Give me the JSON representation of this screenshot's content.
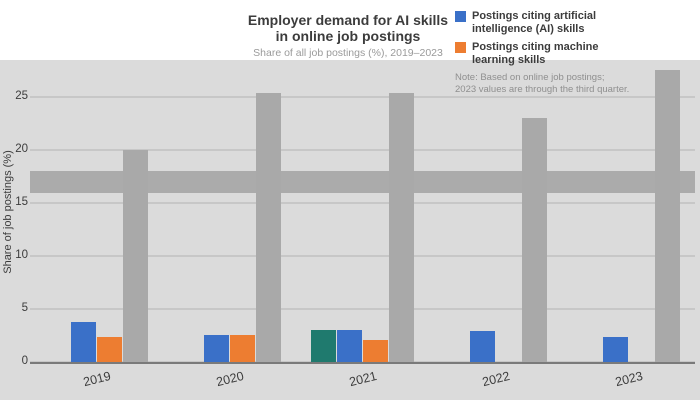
{
  "header": {
    "title_line1": "Employer demand for AI skills",
    "title_line2": "in online job postings",
    "subtitle": "Share of all job postings (%), 2019–2023"
  },
  "legend": {
    "entries": [
      {
        "label_line1": "Postings citing artificial",
        "label_line2": "intelligence (AI) skills",
        "color": "#3a70c8"
      },
      {
        "label_line1": "Postings citing machine",
        "label_line2": "learning skills",
        "color": "#ed7d31"
      }
    ],
    "note_line1": "Note: Based on online job postings;",
    "note_line2": "2023 values are through the third quarter."
  },
  "y_axis": {
    "title": "Share of job postings (%)",
    "ticks": [
      "0",
      "5",
      "10",
      "15",
      "20",
      "25"
    ]
  },
  "x_axis": {
    "labels": [
      "2019",
      "2020",
      "2021",
      "2022",
      "2023"
    ]
  },
  "chart_data": {
    "type": "bar",
    "title": "Employer demand for AI skills in online job postings",
    "xlabel": "",
    "ylabel": "Share of job postings (%)",
    "categories": [
      "2019",
      "2020",
      "2021",
      "2022",
      "2023"
    ],
    "series": [
      {
        "name": "Teal series (unlabeled, visible 2021 only)",
        "color": "#1f7a6e",
        "values": [
          0,
          0,
          3.0,
          0,
          0
        ]
      },
      {
        "name": "Postings citing artificial intelligence (AI) skills",
        "color": "#3a70c8",
        "values": [
          3.8,
          2.5,
          3.0,
          2.9,
          2.4
        ]
      },
      {
        "name": "Postings citing machine learning skills",
        "color": "#ed7d31",
        "values": [
          2.4,
          2.5,
          2.1,
          0,
          0
        ]
      },
      {
        "name": "All postings (tall gray bars)",
        "color": "#a9a9a9",
        "values": [
          20.0,
          25.4,
          25.4,
          23.0,
          27.5
        ]
      }
    ],
    "ylim": [
      0,
      28.3
    ],
    "yticks": [
      0,
      5,
      10,
      15,
      20,
      25
    ],
    "grid": true,
    "band_value": 17.0,
    "legend_position": "top-right"
  },
  "colors": {
    "plot_bg": "#dbdbdb",
    "gridline": "#c7c7c7",
    "thick_band": "#ababab",
    "axis": "#7a7a7a",
    "text_dark": "#3c3c3c",
    "text_muted": "#8f8f8f"
  }
}
